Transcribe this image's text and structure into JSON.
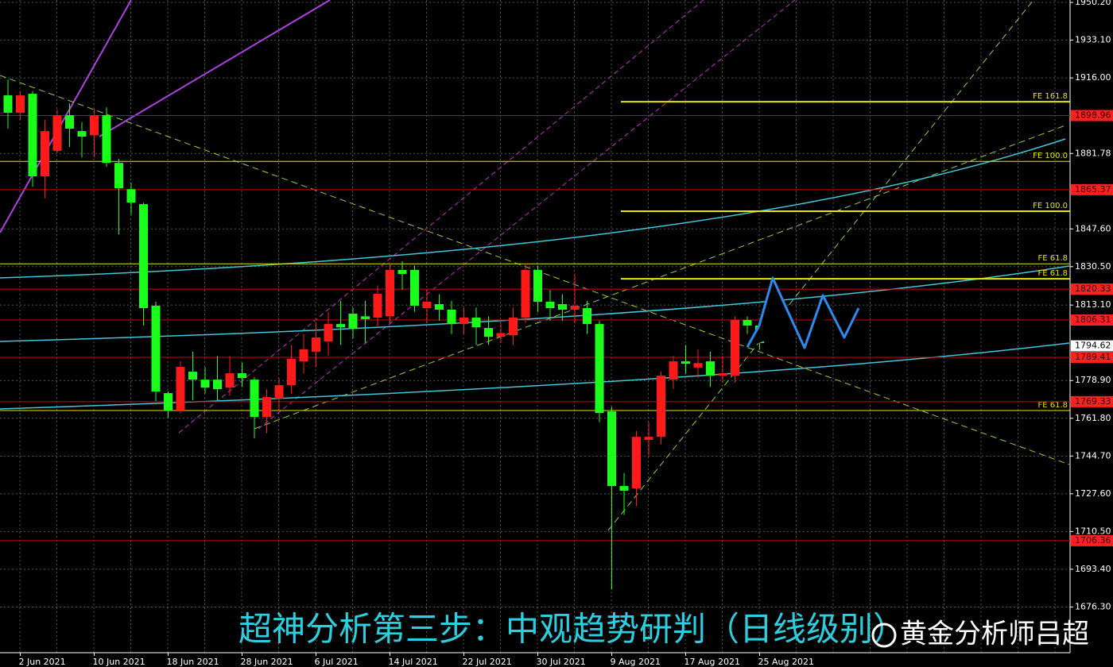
{
  "chart_data": {
    "type": "candlestick",
    "categories": [
      null,
      "2 Jun 2021",
      null,
      null,
      null,
      null,
      null,
      "10 Jun 2021",
      null,
      null,
      null,
      null,
      null,
      "18 Jun 2021",
      null,
      null,
      null,
      null,
      null,
      "28 Jun 2021",
      null,
      null,
      null,
      null,
      null,
      "6 Jul 2021",
      null,
      null,
      null,
      null,
      null,
      "14 Jul 2021",
      null,
      null,
      null,
      null,
      null,
      "22 Jul 2021",
      null,
      null,
      null,
      null,
      null,
      "30 Jul 2021",
      null,
      null,
      null,
      null,
      null,
      "9 Aug 2021",
      null,
      null,
      null,
      null,
      null,
      "17 Aug 2021",
      null,
      null,
      null,
      null,
      null,
      "25 Aug 2021"
    ],
    "open": [
      1908.1,
      1900.2,
      1908.8,
      1871.4,
      1883,
      1899.1,
      1891.9,
      1890,
      1899.1,
      1877.5,
      1865.6,
      1858.8,
      1812.8,
      1773.2,
      1765.3,
      1782.9,
      1779.3,
      1779.3,
      1775.7,
      1782.2,
      1779.3,
      1762.4,
      1770.7,
      1776.8,
      1787.6,
      1792,
      1796.6,
      1804.5,
      1809.2,
      1808,
      1807.4,
      1808,
      1829,
      1829,
      1811.7,
      1813.5,
      1811,
      1804.5,
      1807.4,
      1802.7,
      1798.7,
      1799.4,
      1807.4,
      1829,
      1814.6,
      1813.5,
      1811,
      1811.7,
      1804.5,
      1764.9,
      1731.1,
      1730,
      1752,
      1753.4,
      1779.3,
      1787.6,
      1784.8,
      1787.6,
      1781.1,
      1781.1,
      1806.3,
      1803.8
    ],
    "high": [
      1915.3,
      1910,
      1910,
      1897,
      1901.6,
      1904.5,
      1896,
      1902,
      1902.7,
      1879.3,
      1868.5,
      1859.5,
      1814.6,
      1774,
      1787.6,
      1792,
      1785,
      1790,
      1790,
      1787,
      1780.4,
      1775,
      1780,
      1795,
      1800,
      1805,
      1810,
      1815,
      1812,
      1815,
      1822,
      1832,
      1833,
      1831,
      1820,
      1818,
      1815,
      1812,
      1812,
      1808,
      1805,
      1812,
      1832,
      1831,
      1820,
      1818,
      1827,
      1815,
      1806,
      1767,
      1737,
      1756,
      1760,
      1783,
      1790,
      1795,
      1793,
      1792,
      1790,
      1808,
      1808,
      1806
    ],
    "low": [
      1893,
      1897,
      1866.7,
      1861.5,
      1882,
      1884.7,
      1880,
      1880,
      1875.7,
      1845.1,
      1854.1,
      1803.8,
      1769.6,
      1762,
      1764,
      1770,
      1773,
      1770,
      1772,
      1776,
      1752.7,
      1755,
      1765,
      1773,
      1782,
      1785,
      1790,
      1795,
      1798,
      1796,
      1803,
      1805,
      1820,
      1810,
      1805,
      1806,
      1800,
      1800,
      1795,
      1795,
      1796,
      1795,
      1805,
      1810,
      1806,
      1806,
      1805,
      1800,
      1760,
      1684.3,
      1718,
      1722,
      1745,
      1750,
      1775,
      1782,
      1780,
      1776,
      1778,
      1778,
      1800,
      1793
    ],
    "close": [
      1900.2,
      1908.1,
      1871.4,
      1891.9,
      1899.1,
      1893,
      1889.4,
      1899.1,
      1877.5,
      1866,
      1859.5,
      1811.7,
      1773.9,
      1765.3,
      1785.1,
      1779.3,
      1775.7,
      1775,
      1782.2,
      1780,
      1762.4,
      1771.4,
      1776.8,
      1788.7,
      1793,
      1798.4,
      1804.5,
      1803,
      1802.7,
      1806.7,
      1818.2,
      1829,
      1827.2,
      1812.8,
      1814.6,
      1811,
      1804.5,
      1807.4,
      1803,
      1798.7,
      1800.4,
      1807.4,
      1829,
      1814.6,
      1811.7,
      1811,
      1812.8,
      1804.5,
      1764.2,
      1731.1,
      1729,
      1753.4,
      1753.4,
      1781.1,
      1787.6,
      1786.5,
      1786.8,
      1781.1,
      1782.2,
      1806.3,
      1803.8,
      1795.9
    ],
    "up_color": "#ff1a1a",
    "down_color": "#1aff1a",
    "ylim": [
      1655.6,
      1951.3
    ],
    "yticks": [
      {
        "value": 1950.2,
        "label": "1950.20"
      },
      {
        "value": 1933.1,
        "label": "1933.10"
      },
      {
        "value": 1916,
        "label": "1916.00"
      },
      {
        "value": 1881.78,
        "label": "1881.78"
      },
      {
        "value": 1847.6,
        "label": "1847.60"
      },
      {
        "value": 1830.5,
        "label": "1830.50"
      },
      {
        "value": 1813.1,
        "label": "1813.10"
      },
      {
        "value": 1778.9,
        "label": "1778.90"
      },
      {
        "value": 1761.8,
        "label": "1761.80"
      },
      {
        "value": 1744.7,
        "label": "1744.70"
      },
      {
        "value": 1727.6,
        "label": "1727.60"
      },
      {
        "value": 1710.5,
        "label": "1710.50"
      },
      {
        "value": 1693.4,
        "label": "1693.40"
      },
      {
        "value": 1676.3,
        "label": "1676.30"
      }
    ],
    "grid": true,
    "levels": [
      1898.96,
      1865.37,
      1820.33,
      1806.31,
      1789.41,
      1769.33,
      1706.36
    ],
    "level_color": "#d00000",
    "current_price": 1794.62,
    "fe_levels": [
      {
        "value": 1905.2,
        "label": "FE 161.8"
      },
      {
        "value": 1878.2,
        "label": "FE 100.0"
      },
      {
        "value": 1855.6,
        "label": "FE 100.0"
      },
      {
        "value": 1831.8,
        "label": "FE 61.8"
      },
      {
        "value": 1825,
        "label": "FE 61.8"
      },
      {
        "value": 1765.3,
        "label": "FE 61.8"
      }
    ],
    "fe_color": "#e6e600",
    "caption": "超神分析第三步：中观趋势研判（日线级别）",
    "watermark": "黄金分析师吕超"
  }
}
